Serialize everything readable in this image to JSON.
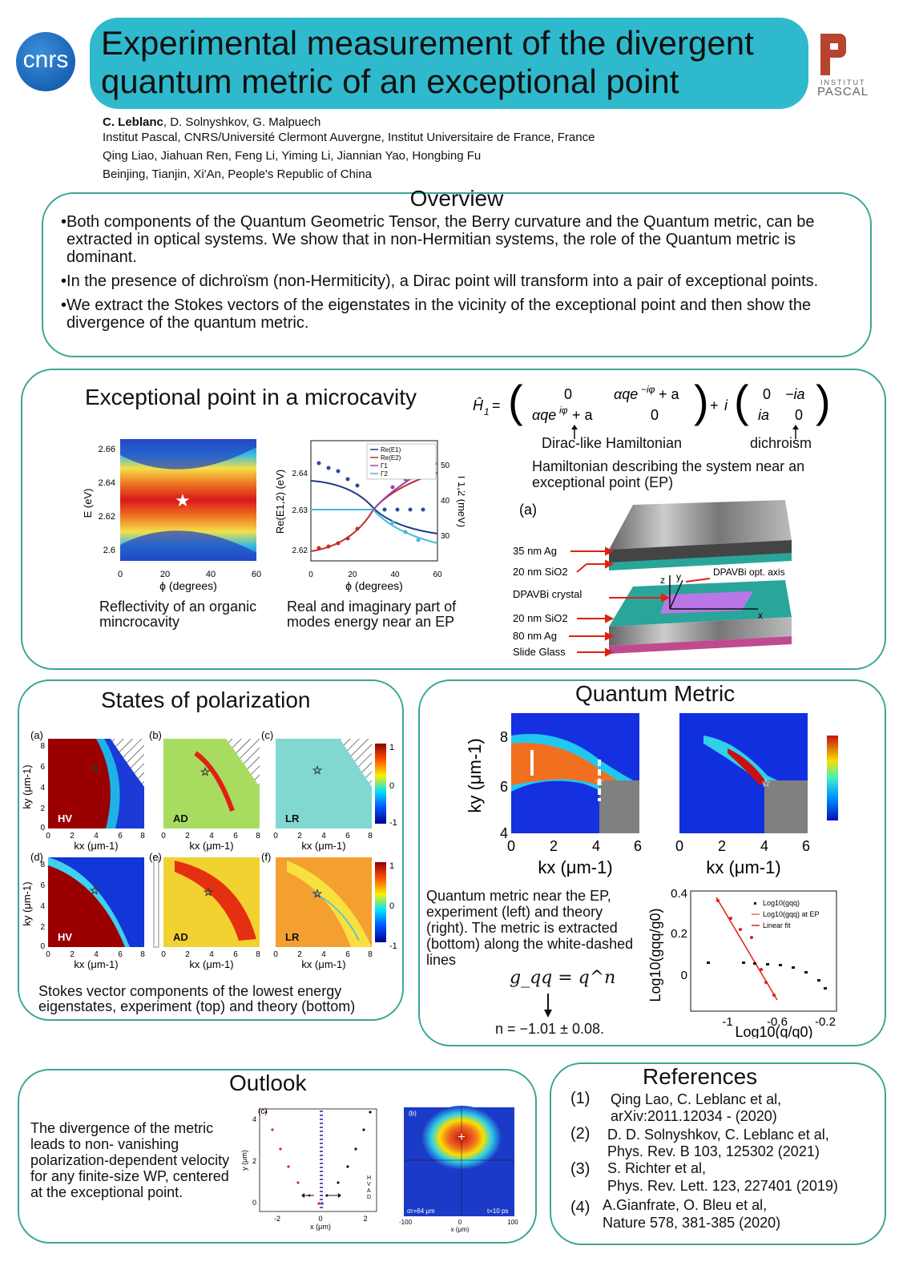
{
  "header": {
    "logo_left": "cnrs",
    "logo_right_line1": "INSTITUT",
    "logo_right_line2": "PASCAL",
    "title_line1": "Experimental measurement of the divergent",
    "title_line2": "quantum metric of an exceptional point",
    "authors1_lead": "C. Leblanc",
    "authors1_rest": ", D. Solnyshkov, G. Malpuech",
    "aff1": "Institut Pascal, CNRS/Université Clermont Auvergne, Institut Universitaire de France, France",
    "authors2": "Qing Liao, Jiahuan Ren, Feng Li, Yiming Li, Jiannian Yao, Hongbing Fu",
    "aff2": "Beinjing, Tianjin, Xi'An, People's Republic of China"
  },
  "overview": {
    "title": "Overview",
    "b1": "Both components of the Quantum Geometric Tensor, the Berry curvature and the Quantum metric, can be extracted in optical systems. We show that in non-Hermitian systems, the role of the Quantum metric is dominant.",
    "b2": "In the presence of dichroïsm (non-Hermiticity), a Dirac point will transform into a pair of exceptional points.",
    "b3": "We extract the Stokes vectors of the eigenstates in the vicinity of the exceptional point and then show the divergence of the quantum metric."
  },
  "ep": {
    "title": "Exceptional point in a microcavity",
    "hamiltonian": "Ĥ₁ = ( 0  αqe^{−iφ}+a ; αqe^{iφ}+a  0 ) + i ( 0  −ia ; ia  0 )",
    "dirac": "Dirac-like Hamiltonian",
    "dichroism": "dichroism",
    "caption_h": "Hamiltonian describing the system near an exceptional point (EP)",
    "fig1_caption": "Reflectivity of an organic mincrocavity",
    "fig2_caption": "Real and imaginary part of modes energy near an EP",
    "fig1": {
      "ylabel": "E (eV)",
      "xlabel": "ϕ (degrees)",
      "yticks": [
        "2.66",
        "2.64",
        "2.62",
        "2.6"
      ],
      "xticks": [
        "0",
        "20",
        "40",
        "60"
      ]
    },
    "fig2": {
      "ylabel": "Re(E1,2) (eV)",
      "ylabel2": "Γ1,2 (meV)",
      "xlabel": "ϕ (degrees)",
      "yticks": [
        "2.64",
        "2.63",
        "2.62"
      ],
      "y2ticks": [
        "50",
        "40",
        "30"
      ],
      "xticks": [
        "0",
        "20",
        "40",
        "60"
      ],
      "legend": [
        "Re(E1)",
        "Re(E2)",
        "Γ1",
        "Γ2"
      ]
    },
    "stack": {
      "label": "(a)",
      "l1": "35 nm Ag",
      "l2": "20 nm SiO2",
      "l3": "DPAVBi crystal",
      "l4": "20 nm SiO2",
      "l5": "80 nm Ag",
      "l6": "Slide Glass",
      "axis": "DPAVBi opt. axis",
      "x": "x",
      "y": "y",
      "z": "z"
    }
  },
  "sop": {
    "title": "States of polarization",
    "panels": [
      "(a)",
      "(b)",
      "(c)",
      "(d)",
      "(e)",
      "(f)"
    ],
    "labels": [
      "HV",
      "AD",
      "LR",
      "HV",
      "AD",
      "LR"
    ],
    "ylabel": "ky (μm-1)",
    "xlabel": "kx (μm-1)",
    "ticks": [
      "0",
      "2",
      "4",
      "6",
      "8"
    ],
    "cbar": [
      "1",
      "0",
      "-1"
    ],
    "caption": "Stokes vector components of the lowest energy eigenstates, experiment (top) and theory (bottom)"
  },
  "qm": {
    "title": "Quantum Metric",
    "ylabel": "ky (μm-1)",
    "xlabel": "kx (μm-1)",
    "yticks": [
      "8",
      "6",
      "4"
    ],
    "xticks": [
      "0",
      "2",
      "4",
      "6"
    ],
    "caption": "Quantum metric near the EP, experiment (left) and theory (right). The metric is extracted (bottom) along the white-dashed lines",
    "formula": "g_qq = q^n",
    "result": "n = −1.01 ± 0.08.",
    "plot": {
      "ylabel": "Log10(gqq/g0)",
      "xlabel": "Log10(q/q0)",
      "yticks": [
        "0.4",
        "0.2",
        "0"
      ],
      "xticks": [
        "-1",
        "-0.6",
        "-0.2"
      ],
      "legend": [
        "Log10(gqq)",
        "Log10(gqq) at EP",
        "Linear fit"
      ]
    }
  },
  "outlook": {
    "title": "Outlook",
    "text": "The divergence of the metric leads to non- vanishing polarization-dependent velocity for any finite-size WP, centered at the exceptional point.",
    "figc": {
      "label": "(c)",
      "ylabel": "y (μm)",
      "xlabel": "x (μm)",
      "xticks": [
        "-2",
        "0",
        "2"
      ],
      "yticks": [
        "4",
        "2",
        "0"
      ],
      "legend": [
        "H",
        "V",
        "A",
        "D"
      ]
    },
    "figb": {
      "label": "(b)",
      "note1": "σr=64 μm",
      "note2": "t=10 ps",
      "xlabel": "x (μm)",
      "xticks": [
        "-100",
        "0",
        "100"
      ]
    }
  },
  "refs": {
    "title": "References",
    "items": [
      {
        "n": "(1)",
        "a": "Qing Lao, C. Leblanc et al,",
        "b": "arXiv:2011.12034  - (2020)"
      },
      {
        "n": "(2)",
        "a": "D. D. Solnyshkov, C. Leblanc et al,",
        "b": "Phys. Rev. B  103, 125302 (2021)"
      },
      {
        "n": "(3)",
        "a": "S. Richter et al,",
        "b": "Phys. Rev. Lett. 123, 227401 (2019)"
      },
      {
        "n": "(4)",
        "a": "A.Gianfrate, O. Bleu et al,",
        "b": "Nature 578, 381-385 (2020)"
      }
    ]
  }
}
